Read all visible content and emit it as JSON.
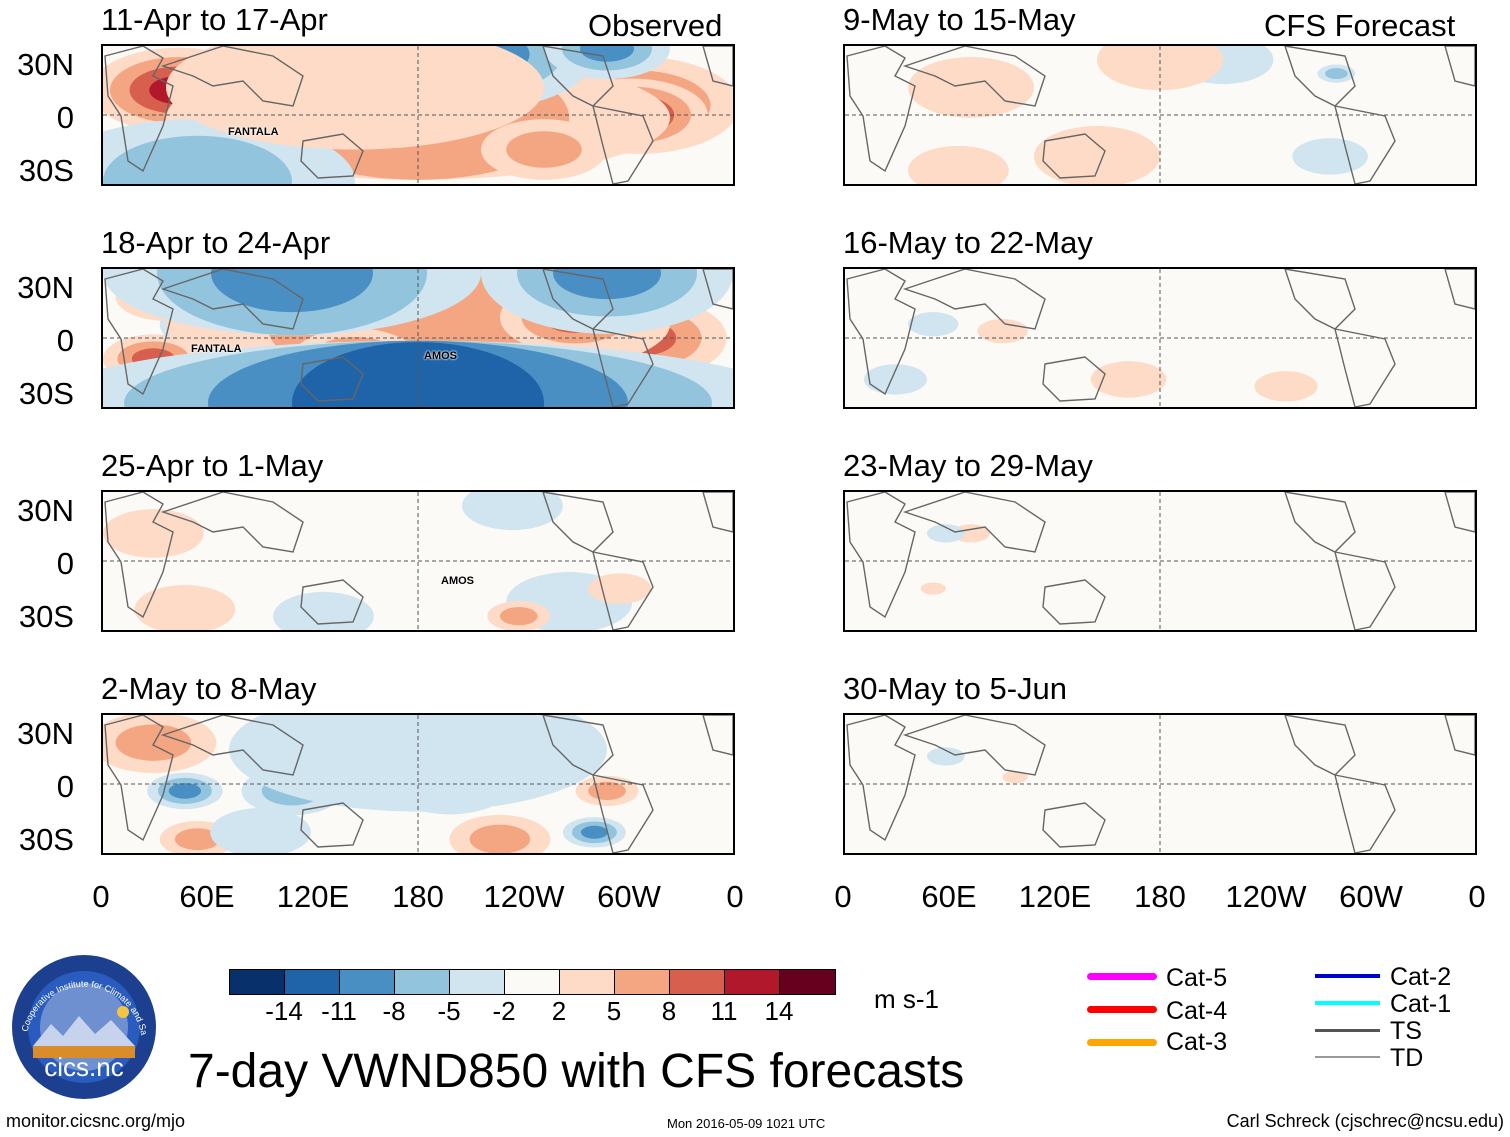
{
  "columns": {
    "observed": "Observed",
    "forecast": "CFS Forecast"
  },
  "panels_left": [
    {
      "title": "11-Apr to 17-Apr",
      "storms": [
        "FANTALA"
      ]
    },
    {
      "title": "18-Apr to 24-Apr",
      "storms": [
        "FANTALA",
        "AMOS"
      ]
    },
    {
      "title": "25-Apr to 1-May",
      "storms": [
        "AMOS"
      ]
    },
    {
      "title": "2-May to 8-May",
      "storms": []
    }
  ],
  "panels_right": [
    {
      "title": "9-May to 15-May"
    },
    {
      "title": "16-May to 22-May"
    },
    {
      "title": "23-May to 29-May"
    },
    {
      "title": "30-May to 5-Jun"
    }
  ],
  "lat_labels": [
    "30N",
    "0",
    "30S"
  ],
  "lon_labels": [
    "0",
    "60E",
    "120E",
    "180",
    "120W",
    "60W",
    "0"
  ],
  "colorbar": {
    "colors": [
      "#08306b",
      "#1f63a8",
      "#4a8fc4",
      "#93c4de",
      "#d1e5f0",
      "#fbfaf6",
      "#fddbc7",
      "#f4a582",
      "#d6604d",
      "#b2182b",
      "#67001f"
    ],
    "ticks": [
      "-14",
      "-11",
      "-8",
      "-5",
      "-2",
      "2",
      "5",
      "8",
      "11",
      "14"
    ],
    "units": "m s-1"
  },
  "legend": [
    {
      "label": "Cat-5",
      "color": "#ff00ff"
    },
    {
      "label": "Cat-4",
      "color": "#ff0000"
    },
    {
      "label": "Cat-3",
      "color": "#ffa500"
    },
    {
      "label": "Cat-2",
      "color": "#0000cd"
    },
    {
      "label": "Cat-1",
      "color": "#00ffff"
    },
    {
      "label": "TS",
      "color": "#555555"
    },
    {
      "label": "TD",
      "color": "#999999"
    }
  ],
  "main_title": "7-day VWND850 with CFS forecasts",
  "logo_text": "cics.nc",
  "logo_ring_text": "Cooperative Institute for Climate and Satellites",
  "footer": {
    "left": "monitor.cicsnc.org/mjo",
    "center": "Mon 2016-05-09 1021 UTC",
    "right": "Carl Schreck (cjschrec@ncsu.edu)"
  }
}
